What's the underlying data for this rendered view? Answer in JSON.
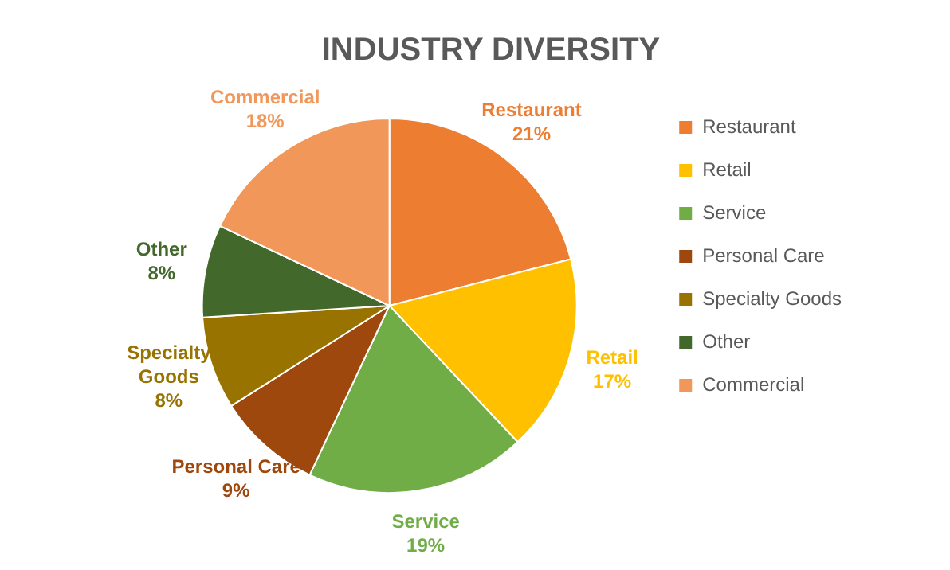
{
  "chart_data": {
    "type": "pie",
    "title": "INDUSTRY DIVERSITY",
    "categories": [
      "Restaurant",
      "Retail",
      "Service",
      "Personal Care",
      "Specialty Goods",
      "Other",
      "Commercial"
    ],
    "values": [
      21,
      17,
      19,
      9,
      8,
      8,
      18
    ],
    "value_labels": [
      "21%",
      "17%",
      "19%",
      "9%",
      "8%",
      "8%",
      "18%"
    ],
    "colors": [
      "#ed7d31",
      "#ffc000",
      "#70ad47",
      "#9e480e",
      "#997300",
      "#43682b",
      "#f1975a"
    ],
    "legend": "right"
  }
}
